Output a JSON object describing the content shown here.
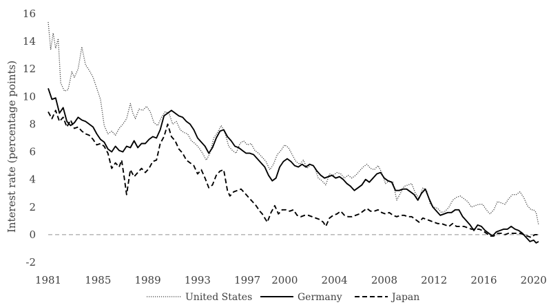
{
  "chart_data": {
    "type": "line",
    "title": "",
    "xlabel": "",
    "ylabel": "Interest rate (percentage points)",
    "xlim": [
      1981,
      2020.4
    ],
    "ylim": [
      -2,
      16
    ],
    "x_ticks": [
      "1981",
      "1985",
      "1989",
      "1993",
      "1997",
      "2000",
      "2004",
      "2008",
      "2012",
      "2016",
      "2020"
    ],
    "y_ticks": [
      "-2",
      "0",
      "2",
      "4",
      "6",
      "8",
      "10",
      "12",
      "14",
      "16"
    ],
    "grid": false,
    "legend_position": "bottom",
    "zero_line": {
      "y": 0,
      "style": "dashed",
      "color": "#a6a6a6"
    },
    "series": [
      {
        "name": "United States",
        "style": "dotted",
        "color": "#404040",
        "x": [
          1981.0,
          1981.2,
          1981.4,
          1981.6,
          1981.8,
          1982.0,
          1982.3,
          1982.6,
          1982.9,
          1983.1,
          1983.4,
          1983.7,
          1984.0,
          1984.3,
          1984.6,
          1984.9,
          1985.2,
          1985.5,
          1985.8,
          1986.1,
          1986.4,
          1986.7,
          1987.0,
          1987.3,
          1987.6,
          1987.8,
          1988.0,
          1988.3,
          1988.6,
          1988.9,
          1989.2,
          1989.5,
          1989.8,
          1990.1,
          1990.4,
          1990.7,
          1991.0,
          1991.3,
          1991.6,
          1991.9,
          1992.2,
          1992.5,
          1992.8,
          1993.1,
          1993.4,
          1993.7,
          1994.0,
          1994.3,
          1994.6,
          1994.9,
          1995.2,
          1995.5,
          1995.8,
          1996.1,
          1996.4,
          1996.7,
          1997.0,
          1997.3,
          1997.6,
          1997.9,
          1998.2,
          1998.5,
          1998.8,
          1999.1,
          1999.4,
          1999.7,
          2000.0,
          2000.3,
          2000.6,
          2000.9,
          2001.2,
          2001.5,
          2001.8,
          2002.1,
          2002.4,
          2002.7,
          2003.0,
          2003.3,
          2003.6,
          2003.9,
          2004.2,
          2004.5,
          2004.8,
          2005.1,
          2005.4,
          2005.7,
          2006.0,
          2006.3,
          2006.6,
          2006.9,
          2007.2,
          2007.5,
          2007.8,
          2008.1,
          2008.4,
          2008.7,
          2009.0,
          2009.3,
          2009.6,
          2009.9,
          2010.2,
          2010.5,
          2010.8,
          2011.1,
          2011.4,
          2011.7,
          2012.0,
          2012.3,
          2012.6,
          2012.9,
          2013.2,
          2013.5,
          2013.8,
          2014.1,
          2014.4,
          2014.7,
          2015.0,
          2015.3,
          2015.6,
          2015.9,
          2016.2,
          2016.5,
          2016.8,
          2017.1,
          2017.4,
          2017.7,
          2018.0,
          2018.3,
          2018.6,
          2018.9,
          2019.2,
          2019.5,
          2019.8,
          2020.0,
          2020.2,
          2020.4
        ],
        "values": [
          15.4,
          13.4,
          14.6,
          13.5,
          14.2,
          11.0,
          10.4,
          10.5,
          11.8,
          11.4,
          12.0,
          13.6,
          12.3,
          11.9,
          11.4,
          10.6,
          9.8,
          7.9,
          7.3,
          7.5,
          7.2,
          7.7,
          8.0,
          8.4,
          9.5,
          8.8,
          8.4,
          9.1,
          9.0,
          9.3,
          8.9,
          8.1,
          7.9,
          8.5,
          8.9,
          8.8,
          8.0,
          8.2,
          7.6,
          7.4,
          7.3,
          6.8,
          6.6,
          6.3,
          5.9,
          5.4,
          5.9,
          7.0,
          7.4,
          7.9,
          7.4,
          6.4,
          6.1,
          5.9,
          6.6,
          6.8,
          6.5,
          6.6,
          6.1,
          5.9,
          5.6,
          5.3,
          4.7,
          5.1,
          5.8,
          6.1,
          6.5,
          6.3,
          5.8,
          5.3,
          5.1,
          5.4,
          4.8,
          5.1,
          4.9,
          4.1,
          3.9,
          3.6,
          4.4,
          4.3,
          4.5,
          4.4,
          4.1,
          4.3,
          4.1,
          4.3,
          4.6,
          4.9,
          5.1,
          4.8,
          4.7,
          5.0,
          4.5,
          3.7,
          3.9,
          3.8,
          2.5,
          3.0,
          3.5,
          3.6,
          3.7,
          3.0,
          2.6,
          3.4,
          3.2,
          2.2,
          2.0,
          1.9,
          1.6,
          1.7,
          2.0,
          2.5,
          2.7,
          2.8,
          2.6,
          2.4,
          2.0,
          2.1,
          2.2,
          2.2,
          1.8,
          1.5,
          1.8,
          2.4,
          2.3,
          2.2,
          2.6,
          2.9,
          2.9,
          3.1,
          2.7,
          2.1,
          1.8,
          1.8,
          1.6,
          0.7
        ]
      },
      {
        "name": "Germany",
        "style": "solid",
        "color": "#000000",
        "x": [
          1981.0,
          1981.3,
          1981.6,
          1981.9,
          1982.2,
          1982.5,
          1982.8,
          1983.1,
          1983.4,
          1983.7,
          1984.0,
          1984.3,
          1984.6,
          1984.9,
          1985.2,
          1985.5,
          1985.8,
          1986.1,
          1986.4,
          1986.7,
          1987.0,
          1987.3,
          1987.6,
          1987.9,
          1988.2,
          1988.5,
          1988.8,
          1989.1,
          1989.4,
          1989.7,
          1990.0,
          1990.3,
          1990.6,
          1990.9,
          1991.2,
          1991.5,
          1991.8,
          1992.1,
          1992.4,
          1992.7,
          1993.0,
          1993.3,
          1993.6,
          1993.9,
          1994.2,
          1994.5,
          1994.8,
          1995.1,
          1995.4,
          1995.7,
          1996.0,
          1996.3,
          1996.6,
          1996.9,
          1997.2,
          1997.5,
          1997.8,
          1998.1,
          1998.4,
          1998.7,
          1999.0,
          1999.3,
          1999.6,
          1999.9,
          2000.2,
          2000.5,
          2000.8,
          2001.1,
          2001.4,
          2001.7,
          2002.0,
          2002.3,
          2002.6,
          2002.9,
          2003.2,
          2003.5,
          2003.8,
          2004.1,
          2004.4,
          2004.7,
          2005.0,
          2005.3,
          2005.6,
          2005.9,
          2006.2,
          2006.5,
          2006.8,
          2007.1,
          2007.4,
          2007.7,
          2008.0,
          2008.3,
          2008.6,
          2008.9,
          2009.2,
          2009.5,
          2009.8,
          2010.1,
          2010.4,
          2010.7,
          2011.0,
          2011.3,
          2011.6,
          2011.9,
          2012.2,
          2012.5,
          2012.8,
          2013.1,
          2013.4,
          2013.7,
          2014.0,
          2014.3,
          2014.6,
          2014.9,
          2015.2,
          2015.5,
          2015.8,
          2016.1,
          2016.4,
          2016.7,
          2017.0,
          2017.3,
          2017.6,
          2017.9,
          2018.2,
          2018.5,
          2018.8,
          2019.1,
          2019.4,
          2019.7,
          2020.0,
          2020.2,
          2020.4
        ],
        "values": [
          10.6,
          9.8,
          9.9,
          8.8,
          9.2,
          8.2,
          7.9,
          8.1,
          8.5,
          8.3,
          8.2,
          8.0,
          7.8,
          7.3,
          6.9,
          6.7,
          6.2,
          6.0,
          6.4,
          6.1,
          6.0,
          6.4,
          6.3,
          6.8,
          6.3,
          6.6,
          6.6,
          6.9,
          7.1,
          7.0,
          7.6,
          8.6,
          8.8,
          9.0,
          8.8,
          8.6,
          8.5,
          8.2,
          8.0,
          7.6,
          7.0,
          6.7,
          6.4,
          5.9,
          6.3,
          7.0,
          7.5,
          7.6,
          7.1,
          6.8,
          6.4,
          6.3,
          6.1,
          5.9,
          5.9,
          5.8,
          5.5,
          5.2,
          4.9,
          4.3,
          3.9,
          4.1,
          4.9,
          5.3,
          5.5,
          5.3,
          5.0,
          4.9,
          5.1,
          4.9,
          5.1,
          5.0,
          4.6,
          4.3,
          4.1,
          4.2,
          4.3,
          4.1,
          4.2,
          4.0,
          3.7,
          3.5,
          3.2,
          3.4,
          3.6,
          4.0,
          3.8,
          4.1,
          4.4,
          4.5,
          4.1,
          3.9,
          3.8,
          3.2,
          3.2,
          3.3,
          3.3,
          3.1,
          2.9,
          2.5,
          3.0,
          3.3,
          2.6,
          2.0,
          1.7,
          1.4,
          1.5,
          1.6,
          1.6,
          1.8,
          1.8,
          1.3,
          1.0,
          0.7,
          0.3,
          0.7,
          0.6,
          0.3,
          0.1,
          -0.1,
          0.2,
          0.3,
          0.4,
          0.4,
          0.6,
          0.4,
          0.3,
          0.1,
          -0.2,
          -0.5,
          -0.4,
          -0.6,
          -0.5
        ]
      },
      {
        "name": "Japan",
        "style": "dashed",
        "color": "#000000",
        "x": [
          1981.0,
          1981.3,
          1981.6,
          1981.9,
          1982.2,
          1982.5,
          1982.8,
          1983.1,
          1983.4,
          1983.7,
          1984.0,
          1984.3,
          1984.6,
          1984.9,
          1985.2,
          1985.5,
          1985.8,
          1986.1,
          1986.4,
          1986.7,
          1986.9,
          1987.1,
          1987.3,
          1987.6,
          1987.9,
          1988.2,
          1988.5,
          1988.8,
          1989.1,
          1989.4,
          1989.7,
          1990.0,
          1990.3,
          1990.6,
          1990.9,
          1991.2,
          1991.5,
          1991.8,
          1992.1,
          1992.4,
          1992.7,
          1993.0,
          1993.3,
          1993.6,
          1993.9,
          1994.2,
          1994.5,
          1994.8,
          1995.1,
          1995.4,
          1995.6,
          1995.9,
          1996.2,
          1996.5,
          1996.8,
          1997.1,
          1997.4,
          1997.7,
          1998.0,
          1998.2,
          1998.4,
          1998.6,
          1998.9,
          1999.2,
          1999.5,
          1999.8,
          2000.1,
          2000.4,
          2000.7,
          2001.0,
          2001.3,
          2001.6,
          2001.9,
          2002.2,
          2002.5,
          2002.8,
          2003.1,
          2003.3,
          2003.6,
          2003.9,
          2004.2,
          2004.5,
          2004.8,
          2005.1,
          2005.4,
          2005.7,
          2006.0,
          2006.3,
          2006.6,
          2006.9,
          2007.2,
          2007.5,
          2007.8,
          2008.1,
          2008.4,
          2008.7,
          2009.0,
          2009.3,
          2009.6,
          2009.9,
          2010.2,
          2010.5,
          2010.8,
          2011.1,
          2011.4,
          2011.7,
          2012.0,
          2012.3,
          2012.6,
          2012.9,
          2013.2,
          2013.5,
          2013.8,
          2014.1,
          2014.4,
          2014.7,
          2015.0,
          2015.3,
          2015.6,
          2015.9,
          2016.2,
          2016.5,
          2016.8,
          2017.1,
          2017.4,
          2017.7,
          2018.0,
          2018.3,
          2018.6,
          2018.9,
          2019.2,
          2019.5,
          2019.8,
          2020.1,
          2020.4
        ],
        "values": [
          8.9,
          8.4,
          9.0,
          8.2,
          8.5,
          7.8,
          8.3,
          7.7,
          7.8,
          7.5,
          7.3,
          7.2,
          6.9,
          6.5,
          6.6,
          6.4,
          5.9,
          4.8,
          5.2,
          4.9,
          5.4,
          4.2,
          2.9,
          4.7,
          4.2,
          4.5,
          4.8,
          4.5,
          4.8,
          5.3,
          5.4,
          6.6,
          7.1,
          8.0,
          7.1,
          6.8,
          6.2,
          5.9,
          5.4,
          5.2,
          5.0,
          4.4,
          4.7,
          4.1,
          3.4,
          3.6,
          4.3,
          4.6,
          4.7,
          3.2,
          2.8,
          3.1,
          3.2,
          3.3,
          3.0,
          2.7,
          2.4,
          2.1,
          1.7,
          1.5,
          1.2,
          0.9,
          1.6,
          2.1,
          1.5,
          1.8,
          1.8,
          1.7,
          1.8,
          1.4,
          1.3,
          1.4,
          1.4,
          1.3,
          1.2,
          1.1,
          0.9,
          0.6,
          1.2,
          1.4,
          1.5,
          1.7,
          1.4,
          1.3,
          1.3,
          1.4,
          1.5,
          1.7,
          1.9,
          1.7,
          1.7,
          1.8,
          1.6,
          1.5,
          1.6,
          1.4,
          1.3,
          1.4,
          1.4,
          1.3,
          1.3,
          1.1,
          0.9,
          1.2,
          1.1,
          1.0,
          0.9,
          0.8,
          0.8,
          0.7,
          0.6,
          0.8,
          0.6,
          0.6,
          0.6,
          0.5,
          0.4,
          0.4,
          0.4,
          0.3,
          0.1,
          -0.1,
          -0.1,
          0.1,
          0.1,
          0.0,
          0.1,
          0.1,
          0.1,
          0.1,
          0.0,
          -0.1,
          -0.2,
          0.0,
          0.0
        ]
      }
    ]
  }
}
